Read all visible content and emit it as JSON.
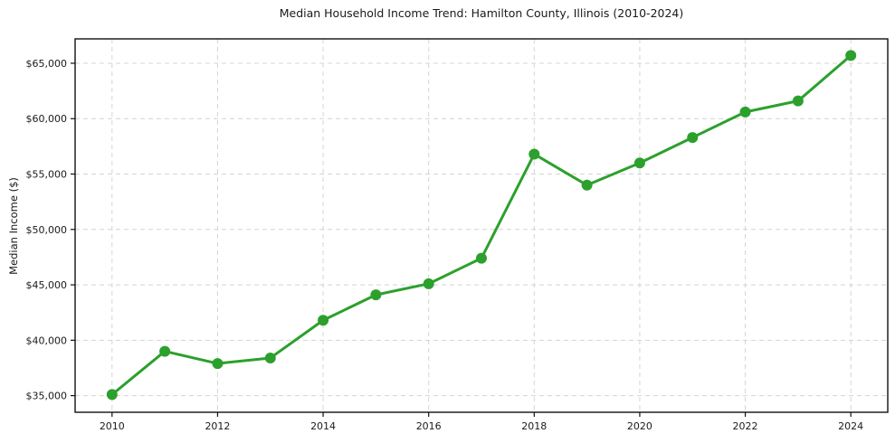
{
  "chart_data": {
    "type": "line",
    "title": "Median Household Income Trend: Hamilton County, Illinois (2010-2024)",
    "xlabel": "",
    "ylabel": "Median Income ($)",
    "x": [
      2010,
      2011,
      2012,
      2013,
      2014,
      2015,
      2016,
      2017,
      2018,
      2019,
      2020,
      2021,
      2022,
      2023,
      2024
    ],
    "series": [
      {
        "name": "Median household income",
        "values": [
          35100,
          39000,
          37900,
          38400,
          41800,
          44100,
          45100,
          47400,
          56800,
          54000,
          56000,
          58300,
          60600,
          61600,
          65700
        ],
        "color": "#2ca02c",
        "marker": "circle",
        "line_width": 3,
        "marker_radius": 6
      }
    ],
    "x_ticks": {
      "values": [
        2010,
        2012,
        2014,
        2016,
        2018,
        2020,
        2022,
        2024
      ],
      "labels": [
        "2010",
        "2012",
        "2014",
        "2016",
        "2018",
        "2020",
        "2022",
        "2024"
      ]
    },
    "y_ticks": {
      "values": [
        35000,
        40000,
        45000,
        50000,
        55000,
        60000,
        65000
      ],
      "labels": [
        "$35,000",
        "$40,000",
        "$45,000",
        "$50,000",
        "$55,000",
        "$60,000",
        "$65,000"
      ]
    },
    "xlim": [
      2009.3,
      2024.7
    ],
    "ylim": [
      33500,
      67200
    ],
    "grid": true,
    "grid_style": "dashed",
    "legend": "none"
  },
  "colors": {
    "line": "#2ca02c",
    "grid": "#d4d4d4",
    "axis": "#111111",
    "text": "#1a1a1a",
    "background": "#ffffff"
  }
}
